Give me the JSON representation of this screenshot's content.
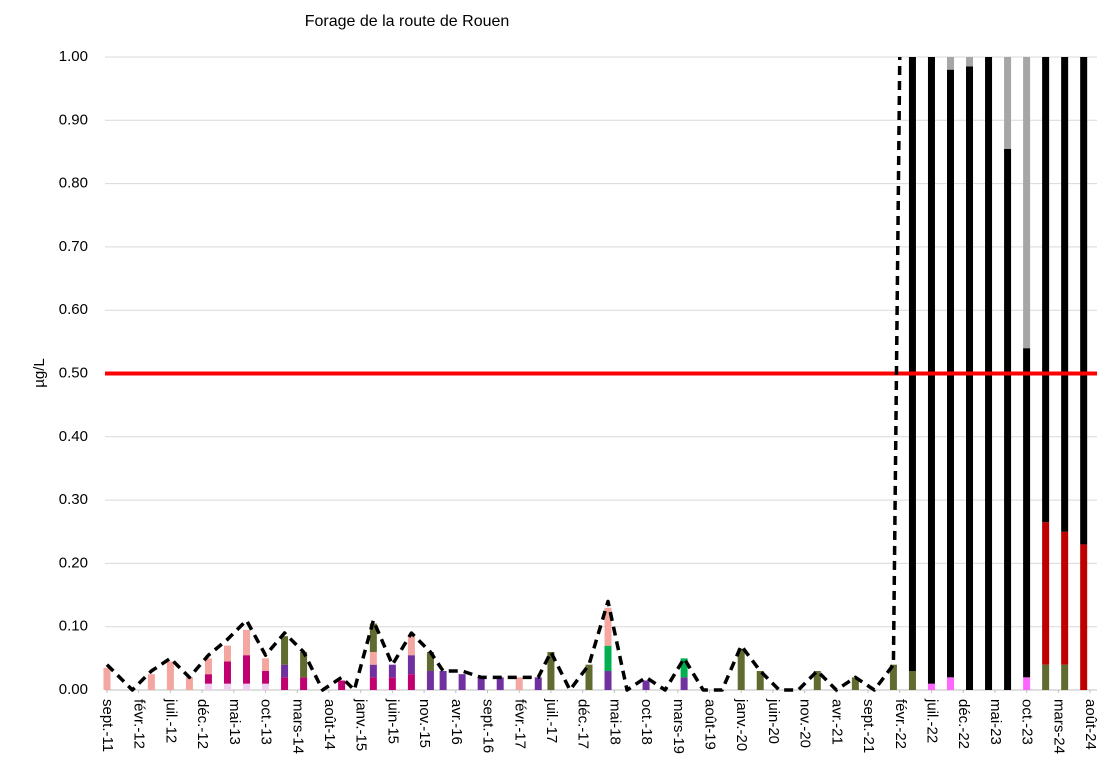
{
  "chart_data": {
    "type": "stacked-bar",
    "title": "Forage de la route de Rouen",
    "ylabel": "µg/L",
    "x": [
      0,
      4,
      7,
      10,
      13,
      16,
      19,
      22,
      25,
      28,
      31,
      34,
      37,
      39,
      42,
      45,
      48,
      51,
      53,
      56,
      59,
      62,
      65,
      68,
      70,
      73,
      76,
      79,
      82,
      85,
      88,
      91,
      94,
      97,
      100,
      103,
      106,
      109,
      112,
      115,
      118,
      121,
      124,
      127,
      130,
      133,
      136,
      139,
      142,
      145,
      148,
      151,
      154
    ],
    "series": [
      {
        "color": "#f0d0f0",
        "values": [
          0,
          0,
          0,
          0,
          0,
          0.01,
          0.01,
          0.01,
          0.01,
          0,
          0,
          0,
          0,
          0,
          0,
          0,
          0,
          0,
          0,
          0,
          0,
          0,
          0,
          0,
          0,
          0,
          0,
          0,
          0,
          0,
          0,
          0,
          0,
          0,
          0,
          0,
          0,
          0,
          0,
          0,
          0,
          0,
          0,
          0,
          0,
          0,
          0,
          0,
          0,
          0,
          0,
          0,
          0
        ]
      },
      {
        "color": "#c0006f",
        "values": [
          0,
          0,
          0,
          0,
          0,
          0.015,
          0.035,
          0.045,
          0.02,
          0.02,
          0.02,
          0,
          0.015,
          0,
          0.02,
          0.02,
          0.025,
          0,
          0,
          0,
          0,
          0,
          0,
          0,
          0,
          0,
          0,
          0,
          0,
          0,
          0,
          0,
          0,
          0,
          0,
          0,
          0,
          0,
          0,
          0,
          0,
          0,
          0,
          0,
          0,
          0,
          0,
          0,
          0,
          0,
          0,
          0,
          0
        ]
      },
      {
        "color": "#7030a0",
        "values": [
          0,
          0,
          0,
          0,
          0,
          0,
          0,
          0,
          0,
          0.02,
          0,
          0,
          0,
          0,
          0.02,
          0.02,
          0.03,
          0.03,
          0.03,
          0.025,
          0.02,
          0.02,
          0,
          0.02,
          0,
          0,
          0,
          0.03,
          0,
          0.015,
          0,
          0.02,
          0,
          0,
          0,
          0,
          0,
          0,
          0,
          0,
          0,
          0,
          0,
          0,
          0,
          0,
          0,
          0,
          0,
          0,
          0,
          0,
          0
        ]
      },
      {
        "color": "#00b050",
        "values": [
          0,
          0,
          0,
          0,
          0,
          0,
          0,
          0,
          0,
          0,
          0,
          0,
          0,
          0,
          0,
          0,
          0,
          0,
          0,
          0,
          0,
          0,
          0,
          0,
          0,
          0,
          0,
          0.04,
          0,
          0,
          0,
          0.03,
          0,
          0,
          0,
          0,
          0,
          0,
          0,
          0,
          0,
          0,
          0,
          0,
          0,
          0,
          0,
          0,
          0,
          0,
          0,
          0,
          0
        ]
      },
      {
        "color": "#f4a6a0",
        "values": [
          0.035,
          0,
          0.025,
          0.045,
          0.02,
          0.025,
          0.025,
          0.04,
          0.02,
          0,
          0,
          0,
          0,
          0,
          0.02,
          0,
          0.03,
          0,
          0,
          0,
          0,
          0,
          0.02,
          0,
          0,
          0,
          0,
          0.06,
          0,
          0,
          0,
          0,
          0,
          0,
          0,
          0,
          0,
          0,
          0,
          0,
          0,
          0,
          0,
          0,
          0,
          0,
          0,
          0,
          0,
          0,
          0,
          0,
          0
        ]
      },
      {
        "color": "#5f6b2f",
        "values": [
          0,
          0,
          0,
          0,
          0,
          0,
          0,
          0,
          0,
          0.045,
          0.04,
          0,
          0,
          0,
          0.045,
          0,
          0,
          0.03,
          0,
          0,
          0,
          0,
          0,
          0,
          0.06,
          0,
          0.04,
          0,
          0,
          0,
          0,
          0,
          0,
          0,
          0.065,
          0.03,
          0,
          0,
          0.03,
          0,
          0.02,
          0,
          0.04,
          0.03,
          0,
          0,
          0,
          0,
          0,
          0,
          0.04,
          0.04,
          0
        ]
      },
      {
        "color": "#ff66ff",
        "values": [
          0,
          0,
          0,
          0,
          0,
          0,
          0,
          0,
          0,
          0,
          0,
          0,
          0,
          0,
          0,
          0,
          0,
          0,
          0,
          0,
          0,
          0,
          0,
          0,
          0,
          0,
          0,
          0,
          0,
          0,
          0,
          0,
          0,
          0,
          0,
          0,
          0,
          0,
          0,
          0,
          0,
          0,
          0,
          0,
          0.01,
          0.02,
          0,
          0,
          0,
          0.02,
          0,
          0,
          0
        ]
      },
      {
        "color": "#c00000",
        "values": [
          0,
          0,
          0,
          0,
          0,
          0,
          0,
          0,
          0,
          0,
          0,
          0,
          0,
          0,
          0,
          0,
          0,
          0,
          0,
          0,
          0,
          0,
          0,
          0,
          0,
          0,
          0,
          0,
          0,
          0,
          0,
          0,
          0,
          0,
          0,
          0,
          0,
          0,
          0,
          0,
          0,
          0,
          0,
          0,
          0,
          0,
          0,
          0,
          0,
          0,
          0.225,
          0.21,
          0.23
        ]
      },
      {
        "color": "#000000",
        "values": [
          0,
          0,
          0,
          0,
          0,
          0,
          0,
          0,
          0,
          0,
          0,
          0,
          0,
          0,
          0,
          0,
          0,
          0,
          0,
          0,
          0,
          0,
          0,
          0,
          0,
          0,
          0,
          0,
          0,
          0,
          0,
          0,
          0,
          0,
          0,
          0,
          0,
          0,
          0,
          0,
          0,
          0,
          0,
          0.97,
          0.99,
          0.96,
          0.985,
          1,
          0.855,
          0.52,
          0.735,
          0.75,
          0.77
        ]
      },
      {
        "color": "#a6a6a6",
        "values": [
          0,
          0,
          0,
          0,
          0,
          0,
          0,
          0,
          0,
          0,
          0,
          0,
          0,
          0,
          0,
          0,
          0,
          0,
          0,
          0,
          0,
          0,
          0,
          0,
          0,
          0,
          0,
          0,
          0,
          0,
          0,
          0,
          0,
          0,
          0,
          0,
          0,
          0,
          0,
          0,
          0,
          0,
          0,
          0,
          0,
          0.02,
          0.015,
          0,
          0.145,
          0.46,
          0,
          0,
          0
        ]
      }
    ],
    "line": {
      "color": "#000000",
      "dashed": true,
      "x": [
        0,
        4,
        7,
        10,
        13,
        16,
        19,
        22,
        25,
        28,
        31,
        34,
        37,
        39,
        42,
        45,
        48,
        51,
        53,
        56,
        59,
        62,
        65,
        68,
        70,
        73,
        76,
        79,
        82,
        85,
        88,
        91,
        94,
        97,
        100,
        103,
        106,
        109,
        112,
        115,
        118,
        121,
        124,
        125
      ],
      "values": [
        0.04,
        0,
        0.03,
        0.05,
        0.02,
        0.055,
        0.08,
        0.11,
        0.055,
        0.09,
        0.06,
        0,
        0.02,
        0,
        0.11,
        0.04,
        0.09,
        0.06,
        0.03,
        0.03,
        0.02,
        0.02,
        0.02,
        0.02,
        0.06,
        0,
        0.04,
        0.14,
        0,
        0.02,
        0,
        0.05,
        0,
        0,
        0.07,
        0.03,
        0,
        0,
        0.03,
        0,
        0.02,
        0,
        0.04,
        1
      ]
    },
    "threshold": 0.5,
    "threshold_color": "#ff0000",
    "xlim": [
      -1.1,
      156.1
    ],
    "xticks": [
      {
        "value": 0,
        "label": "sept.-11"
      },
      {
        "value": 5,
        "label": "févr.-12"
      },
      {
        "value": 10,
        "label": "juil.-12"
      },
      {
        "value": 15,
        "label": "déc.-12"
      },
      {
        "value": 20,
        "label": "mai-13"
      },
      {
        "value": 25,
        "label": "oct.-13"
      },
      {
        "value": 30,
        "label": "mars-14"
      },
      {
        "value": 35,
        "label": "août-14"
      },
      {
        "value": 40,
        "label": "janv.-15"
      },
      {
        "value": 45,
        "label": "juin-15"
      },
      {
        "value": 50,
        "label": "nov.-15"
      },
      {
        "value": 55,
        "label": "avr.-16"
      },
      {
        "value": 60,
        "label": "sept.-16"
      },
      {
        "value": 65,
        "label": "févr.-17"
      },
      {
        "value": 70,
        "label": "juil.-17"
      },
      {
        "value": 75,
        "label": "déc.-17"
      },
      {
        "value": 80,
        "label": "mai-18"
      },
      {
        "value": 85,
        "label": "oct.-18"
      },
      {
        "value": 90,
        "label": "mars-19"
      },
      {
        "value": 95,
        "label": "août-19"
      },
      {
        "value": 100,
        "label": "janv.-20"
      },
      {
        "value": 105,
        "label": "juin-20"
      },
      {
        "value": 110,
        "label": "nov.-20"
      },
      {
        "value": 115,
        "label": "avr.-21"
      },
      {
        "value": 120,
        "label": "sept.-21"
      },
      {
        "value": 125,
        "label": "févr.-22"
      },
      {
        "value": 130,
        "label": "juil.-22"
      },
      {
        "value": 135,
        "label": "déc.-22"
      },
      {
        "value": 140,
        "label": "mai-23"
      },
      {
        "value": 145,
        "label": "oct.-23"
      },
      {
        "value": 150,
        "label": "mars-24"
      },
      {
        "value": 155,
        "label": "août-24"
      }
    ],
    "ylim": [
      0,
      1
    ],
    "yticks": [
      {
        "value": 0,
        "label": "0.00"
      },
      {
        "value": 0.1,
        "label": "0.10"
      },
      {
        "value": 0.2,
        "label": "0.20"
      },
      {
        "value": 0.3,
        "label": "0.30"
      },
      {
        "value": 0.4,
        "label": "0.40"
      },
      {
        "value": 0.5,
        "label": "0.50"
      },
      {
        "value": 0.6,
        "label": "0.60"
      },
      {
        "value": 0.7,
        "label": "0.70"
      },
      {
        "value": 0.8,
        "label": "0.80"
      },
      {
        "value": 0.9,
        "label": "0.90"
      },
      {
        "value": 1,
        "label": "1.00"
      }
    ],
    "grid": true
  }
}
